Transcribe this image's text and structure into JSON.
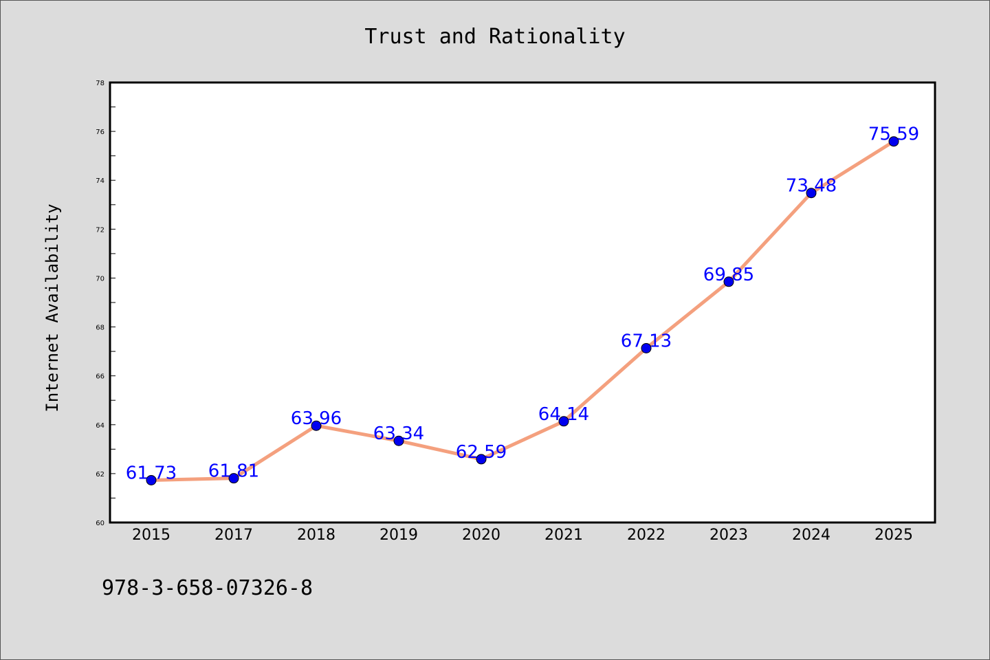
{
  "chart_data": {
    "type": "line",
    "title": "Trust and Rationality",
    "xlabel": "",
    "ylabel": "Internet Availability",
    "categories": [
      "2015",
      "2017",
      "2018",
      "2019",
      "2020",
      "2021",
      "2022",
      "2023",
      "2024",
      "2025"
    ],
    "series": [
      {
        "values": [
          61.73,
          61.81,
          63.96,
          63.34,
          62.59,
          64.14,
          67.13,
          69.85,
          73.48,
          75.59
        ]
      }
    ],
    "data_labels": [
      "61.73",
      "61.81",
      "63.96",
      "63.34",
      "62.59",
      "64.14",
      "67.13",
      "69.85",
      "73.48",
      "75.59"
    ],
    "ylim": [
      60,
      78
    ],
    "yticks": [
      "60",
      "62",
      "64",
      "66",
      "68",
      "70",
      "72",
      "74",
      "76",
      "78"
    ],
    "grid": false,
    "legend": "none",
    "colors": {
      "line": "#f4a07e",
      "marker": "#0000ee",
      "data_label": "#0000ff",
      "background": "#dcdcdc",
      "plot_area": "#ffffff"
    }
  },
  "footer_text": "978-3-658-07326-8"
}
